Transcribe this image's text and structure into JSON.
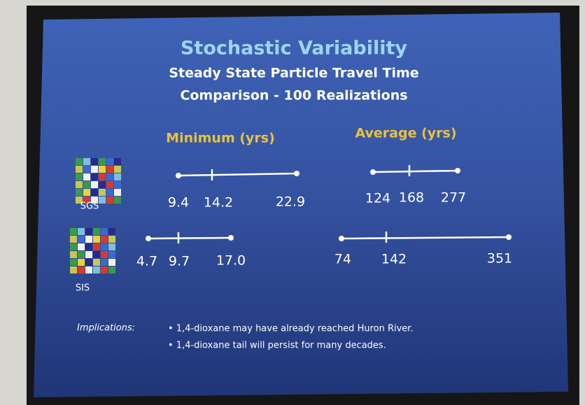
{
  "title": "Stochastic Variability",
  "subtitle": [
    "Steady State Particle Travel Time",
    "Comparison - 100 Realizations"
  ],
  "columns": [
    "Minimum (yrs)",
    "Average (yrs)"
  ],
  "rows": [
    {
      "label": "SGS",
      "minimum": [
        "9.4",
        "14.2",
        "22.9"
      ],
      "average": [
        "124",
        "168",
        "277"
      ]
    },
    {
      "label": "SIS",
      "minimum": [
        "4.7",
        "9.7",
        "17.0"
      ],
      "average": [
        "74",
        "142",
        "351"
      ]
    }
  ],
  "implications": {
    "label": "Implications:",
    "items": [
      "• 1,4-dioxane may have already reached Huron River.",
      "• 1,4-dioxane tail will persist for many decades."
    ]
  }
}
